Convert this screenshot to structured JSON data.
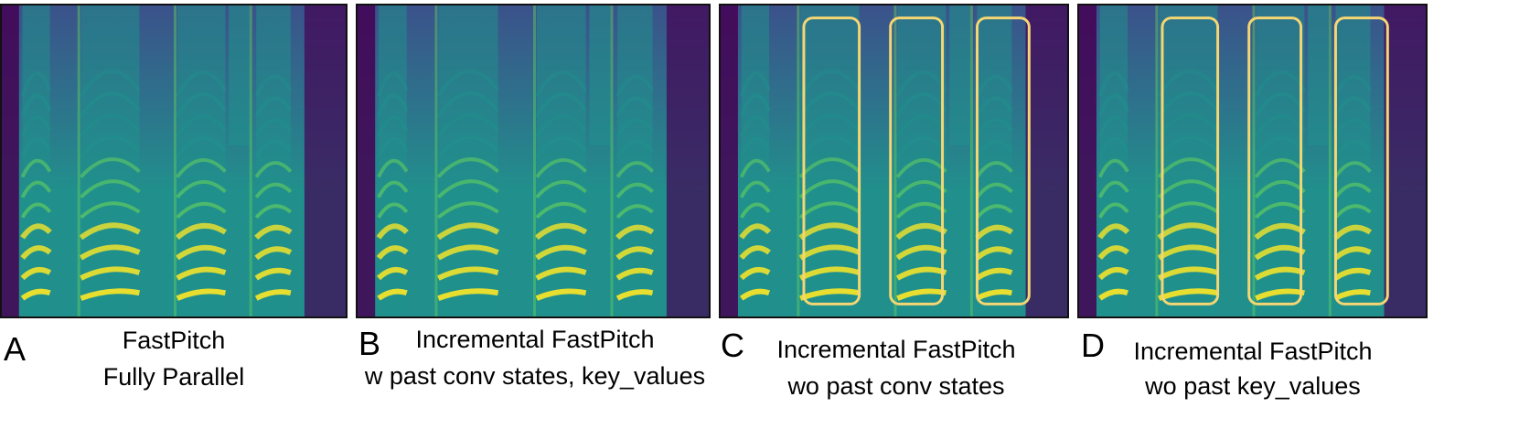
{
  "colors": {
    "deep": "#440154",
    "mid": "#3b528b",
    "teal": "#21908c",
    "green": "#5ec962",
    "yellow": "#fde725",
    "highlight": "#f5d673",
    "frame": "#111111"
  },
  "panels": [
    {
      "letter": "A",
      "caption_line1": "FastPitch",
      "caption_line2": "Fully Parallel",
      "highlight_boxes": 0
    },
    {
      "letter": "B",
      "caption_line1": "Incremental FastPitch",
      "caption_line2": "w past conv states, key_values",
      "highlight_boxes": 0
    },
    {
      "letter": "C",
      "caption_line1": "Incremental FastPitch",
      "caption_line2": "wo past conv states",
      "highlight_boxes": 3
    },
    {
      "letter": "D",
      "caption_line1": "Incremental FastPitch",
      "caption_line2": "wo past key_values",
      "highlight_boxes": 3
    }
  ]
}
